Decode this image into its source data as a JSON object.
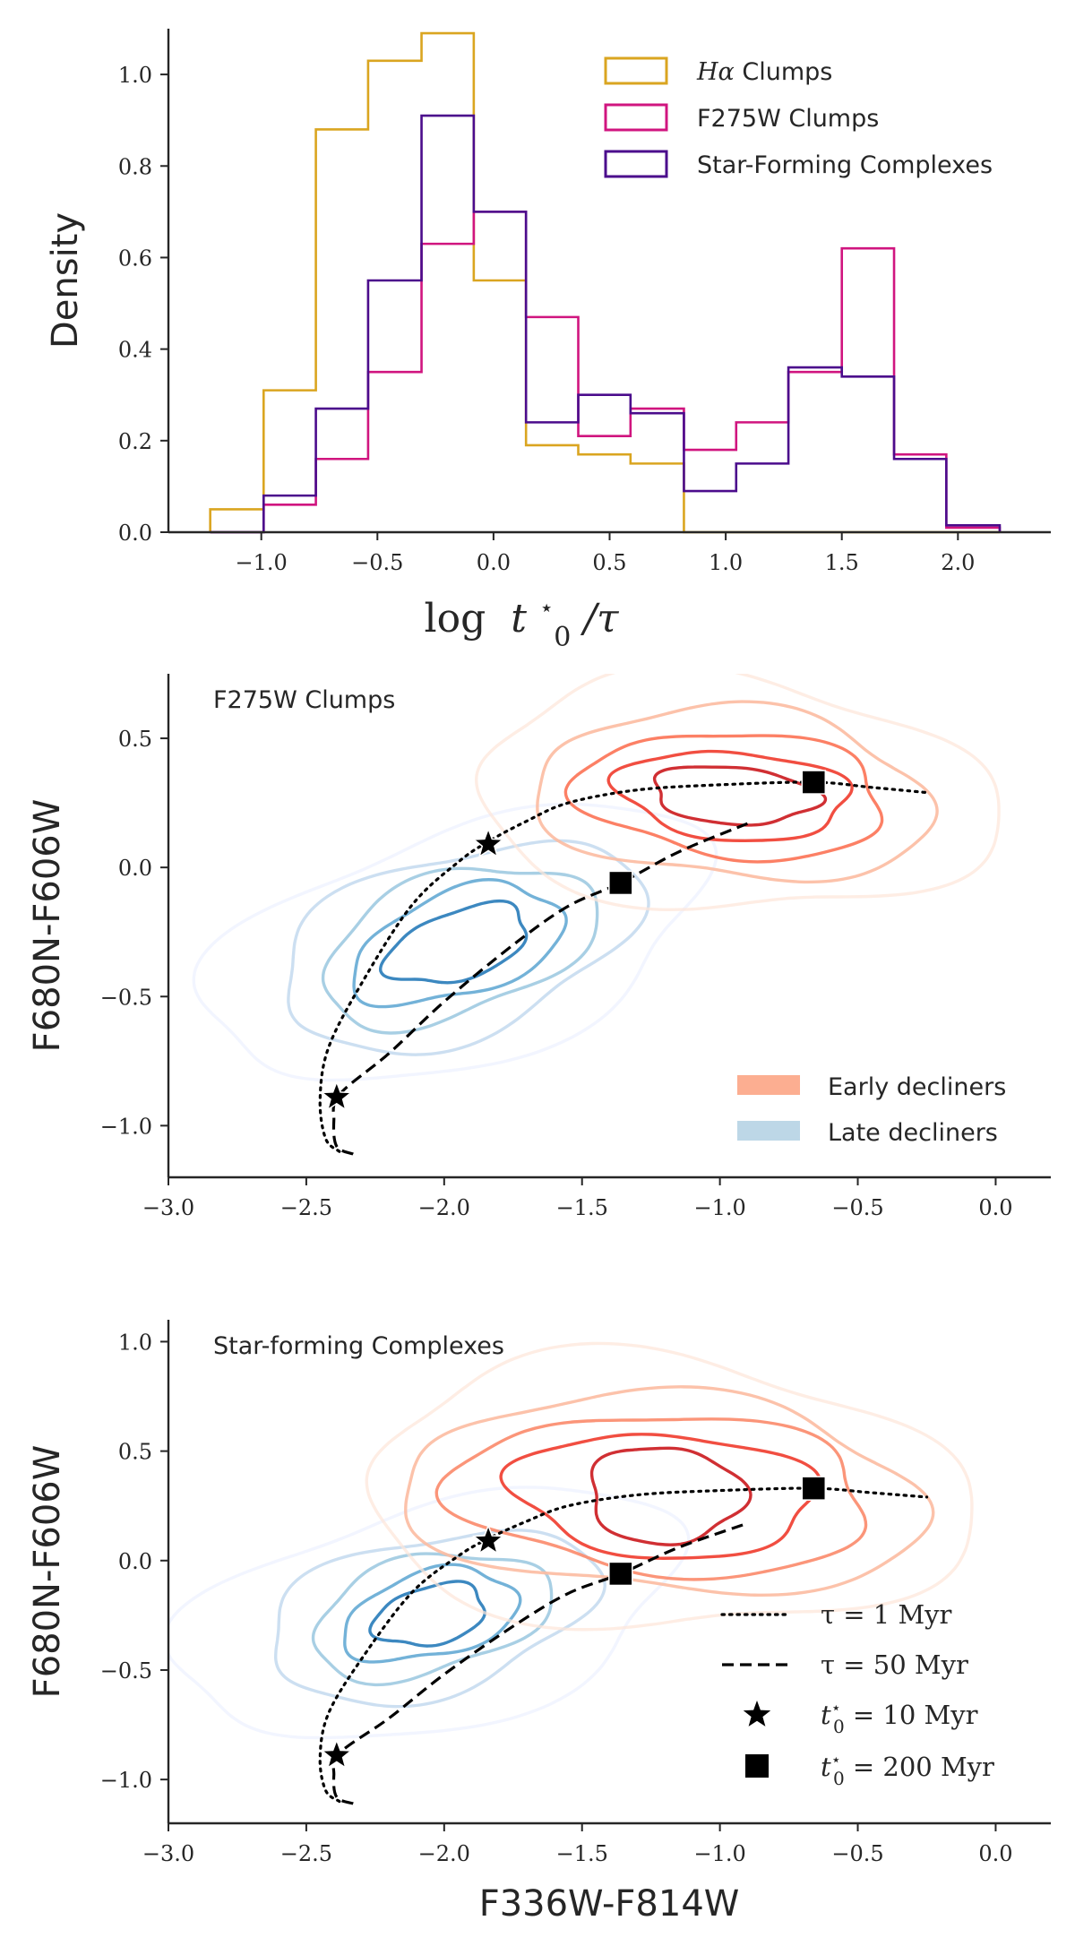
{
  "chart_data": [
    {
      "type": "histogram-step",
      "title": "",
      "xlabel": "log t0*/τ",
      "ylabel": "Density",
      "xlim": [
        -1.4,
        2.4
      ],
      "ylim": [
        0.0,
        1.1
      ],
      "xticks": [
        -1.0,
        -0.5,
        0.0,
        0.5,
        1.0,
        1.5,
        2.0
      ],
      "xtick_labels": [
        "−1.0",
        "−0.5",
        "0.0",
        "0.5",
        "1.0",
        "1.5",
        "2.0"
      ],
      "yticks": [
        0.0,
        0.2,
        0.4,
        0.6,
        0.8,
        1.0
      ],
      "ytick_labels": [
        "0.0",
        "0.2",
        "0.4",
        "0.6",
        "0.8",
        "1.0"
      ],
      "legend_position": "top-right",
      "bin_edges": [
        -1.22,
        -0.99,
        -0.765,
        -0.54,
        -0.31,
        -0.085,
        0.14,
        0.365,
        0.59,
        0.82,
        1.045,
        1.27,
        1.5,
        1.725,
        1.95,
        2.18
      ],
      "series": [
        {
          "name": "Hα Clumps",
          "legend_prefix": "Hα",
          "legend_suffix": " Clumps",
          "color": "#DAA520",
          "values": [
            0.05,
            0.31,
            0.88,
            1.03,
            1.09,
            0.55,
            0.19,
            0.17,
            0.15,
            0.0,
            0.0,
            0.0,
            0.0,
            0.0,
            0.0
          ]
        },
        {
          "name": "F275W Clumps",
          "color": "#D0157F",
          "values": [
            0.0,
            0.06,
            0.16,
            0.35,
            0.63,
            0.7,
            0.47,
            0.21,
            0.27,
            0.18,
            0.24,
            0.35,
            0.62,
            0.17,
            0.01
          ]
        },
        {
          "name": "Star-Forming Complexes",
          "color": "#4B0C8C",
          "values": [
            0.0,
            0.08,
            0.27,
            0.55,
            0.91,
            0.7,
            0.24,
            0.3,
            0.26,
            0.09,
            0.15,
            0.36,
            0.34,
            0.16,
            0.015
          ]
        }
      ]
    },
    {
      "type": "contour",
      "title": "F275W Clumps",
      "xlabel": "",
      "ylabel": "F680N-F606W",
      "xlim": [
        -3.0,
        0.2
      ],
      "ylim": [
        -1.2,
        0.75
      ],
      "xticks": [
        -3.0,
        -2.5,
        -2.0,
        -1.5,
        -1.0,
        -0.5,
        0.0
      ],
      "xtick_labels": [
        "−3.0",
        "−2.5",
        "−2.0",
        "−1.5",
        "−1.0",
        "−0.5",
        "0.0"
      ],
      "yticks": [
        -1.0,
        -0.5,
        0.0,
        0.5
      ],
      "ytick_labels": [
        "−1.0",
        "−0.5",
        "0.0",
        "0.5"
      ],
      "legend_position": "lower-right",
      "legend": [
        {
          "label": "Early decliners",
          "color": "#FCAE91"
        },
        {
          "label": "Late decliners",
          "color": "#BDD7E7"
        }
      ],
      "contours": {
        "early": {
          "center": [
            -0.95,
            0.28
          ],
          "levels": [
            {
              "rx": 0.95,
              "ry": 0.45,
              "color": "#FEE5D9",
              "opacity": 0.7
            },
            {
              "rx": 0.72,
              "ry": 0.33,
              "color": "#FCBBA1",
              "opacity": 0.9
            },
            {
              "rx": 0.56,
              "ry": 0.24,
              "color": "#FB6A4A",
              "opacity": 0.85
            },
            {
              "rx": 0.42,
              "ry": 0.17,
              "color": "#EF3B2C",
              "opacity": 0.9
            },
            {
              "rx": 0.3,
              "ry": 0.11,
              "color": "#CB181D",
              "opacity": 0.9
            }
          ]
        },
        "late": {
          "center": [
            -1.95,
            -0.3
          ],
          "levels": [
            {
              "rx": 0.95,
              "ry": 0.45,
              "color": "#EFF3FF",
              "opacity": 0.8
            },
            {
              "rx": 0.68,
              "ry": 0.35,
              "color": "#C6DBEF",
              "opacity": 0.9
            },
            {
              "rx": 0.52,
              "ry": 0.27,
              "color": "#9ECAE1",
              "opacity": 0.9
            },
            {
              "rx": 0.4,
              "ry": 0.2,
              "color": "#6BAED6",
              "opacity": 0.95
            },
            {
              "rx": 0.27,
              "ry": 0.13,
              "color": "#3182BD",
              "opacity": 0.95
            }
          ]
        }
      },
      "tracks": {
        "tau_1Myr": [
          [
            -2.38,
            -1.1
          ],
          [
            -2.43,
            -1.05
          ],
          [
            -2.45,
            -0.9
          ],
          [
            -2.42,
            -0.7
          ],
          [
            -2.3,
            -0.45
          ],
          [
            -2.12,
            -0.15
          ],
          [
            -1.95,
            0.02
          ],
          [
            -1.84,
            0.1
          ],
          [
            -1.7,
            0.18
          ],
          [
            -1.55,
            0.25
          ],
          [
            -1.3,
            0.3
          ],
          [
            -1.0,
            0.32
          ],
          [
            -0.66,
            0.33
          ],
          [
            -0.45,
            0.31
          ],
          [
            -0.25,
            0.29
          ]
        ],
        "tau_50Myr": [
          [
            -2.33,
            -1.11
          ],
          [
            -2.39,
            -1.08
          ],
          [
            -2.4,
            -0.98
          ],
          [
            -2.38,
            -0.88
          ],
          [
            -2.2,
            -0.72
          ],
          [
            -2.0,
            -0.52
          ],
          [
            -1.75,
            -0.3
          ],
          [
            -1.55,
            -0.15
          ],
          [
            -1.36,
            -0.06
          ],
          [
            -1.15,
            0.06
          ],
          [
            -0.9,
            0.17
          ]
        ]
      },
      "markers": {
        "t0_10Myr": [
          [
            -2.39,
            -0.89
          ],
          [
            -1.84,
            0.09
          ]
        ],
        "t0_200Myr": [
          [
            -1.36,
            -0.06
          ],
          [
            -0.66,
            0.33
          ]
        ]
      }
    },
    {
      "type": "contour",
      "title": "Star-forming Complexes",
      "xlabel": "F336W-F814W",
      "ylabel": "F680N-F606W",
      "xlim": [
        -3.0,
        0.2
      ],
      "ylim": [
        -1.2,
        1.1
      ],
      "xticks": [
        -3.0,
        -2.5,
        -2.0,
        -1.5,
        -1.0,
        -0.5,
        0.0
      ],
      "xtick_labels": [
        "−3.0",
        "−2.5",
        "−2.0",
        "−1.5",
        "−1.0",
        "−0.5",
        "0.0"
      ],
      "yticks": [
        -1.0,
        -0.5,
        0.0,
        0.5,
        1.0
      ],
      "ytick_labels": [
        "−1.0",
        "−0.5",
        "0.0",
        "0.5",
        "1.0"
      ],
      "legend_position": "lower-right",
      "legend": [
        {
          "label_math": "τ = 1 Myr",
          "style": "dotted"
        },
        {
          "label_math": "τ = 50 Myr",
          "style": "dashed"
        },
        {
          "label_math": "t0* = 10 Myr",
          "marker": "star"
        },
        {
          "label_math": "t0* = 200 Myr",
          "marker": "square"
        }
      ],
      "contours": {
        "early": {
          "center": [
            -1.2,
            0.3
          ],
          "levels": [
            {
              "rx": 1.1,
              "ry": 0.62,
              "color": "#FEE5D9",
              "opacity": 0.7
            },
            {
              "rx": 0.95,
              "ry": 0.45,
              "color": "#FCBBA1",
              "opacity": 0.9
            },
            {
              "rx": 0.76,
              "ry": 0.36,
              "color": "#FB8A6A",
              "opacity": 0.9
            },
            {
              "rx": 0.55,
              "ry": 0.28,
              "color": "#EF3B2C",
              "opacity": 0.9
            },
            {
              "rx": 0.28,
              "ry": 0.22,
              "color": "#CB181D",
              "opacity": 0.9
            }
          ]
        },
        "late": {
          "center": [
            -2.05,
            -0.25
          ],
          "levels": [
            {
              "rx": 0.95,
              "ry": 0.5,
              "color": "#EFF3FF",
              "opacity": 0.8
            },
            {
              "rx": 0.62,
              "ry": 0.35,
              "color": "#C6DBEF",
              "opacity": 0.9
            },
            {
              "rx": 0.45,
              "ry": 0.26,
              "color": "#9ECAE1",
              "opacity": 0.9
            },
            {
              "rx": 0.33,
              "ry": 0.19,
              "color": "#6BAED6",
              "opacity": 0.95
            },
            {
              "rx": 0.21,
              "ry": 0.13,
              "color": "#3182BD",
              "opacity": 0.95
            }
          ]
        }
      },
      "tracks": {
        "tau_1Myr": [
          [
            -2.38,
            -1.1
          ],
          [
            -2.43,
            -1.05
          ],
          [
            -2.45,
            -0.9
          ],
          [
            -2.42,
            -0.7
          ],
          [
            -2.3,
            -0.45
          ],
          [
            -2.12,
            -0.15
          ],
          [
            -1.95,
            0.02
          ],
          [
            -1.84,
            0.1
          ],
          [
            -1.7,
            0.18
          ],
          [
            -1.55,
            0.25
          ],
          [
            -1.3,
            0.3
          ],
          [
            -1.0,
            0.32
          ],
          [
            -0.66,
            0.33
          ],
          [
            -0.45,
            0.31
          ],
          [
            -0.25,
            0.29
          ]
        ],
        "tau_50Myr": [
          [
            -2.33,
            -1.11
          ],
          [
            -2.39,
            -1.08
          ],
          [
            -2.4,
            -0.98
          ],
          [
            -2.38,
            -0.88
          ],
          [
            -2.2,
            -0.72
          ],
          [
            -2.0,
            -0.52
          ],
          [
            -1.75,
            -0.3
          ],
          [
            -1.55,
            -0.15
          ],
          [
            -1.36,
            -0.06
          ],
          [
            -1.15,
            0.06
          ],
          [
            -0.9,
            0.17
          ]
        ]
      },
      "markers": {
        "t0_10Myr": [
          [
            -2.39,
            -0.89
          ],
          [
            -1.84,
            0.09
          ]
        ],
        "t0_200Myr": [
          [
            -1.36,
            -0.06
          ],
          [
            -0.66,
            0.33
          ]
        ]
      }
    }
  ],
  "labels": {
    "hist_xlabel_main": "log",
    "hist_xlabel_t": "t",
    "hist_xlabel_sup": "⋆",
    "hist_xlabel_sub": "0",
    "hist_xlabel_tail": "/τ",
    "legend_tau1": "τ = 1 Myr",
    "legend_tau50": "τ = 50 Myr",
    "legend_t10_prefix": "t",
    "legend_t10_suffix": " = 10 Myr",
    "legend_t200_suffix": " = 200 Myr",
    "sup_star": "⋆",
    "sub_zero": "0"
  }
}
